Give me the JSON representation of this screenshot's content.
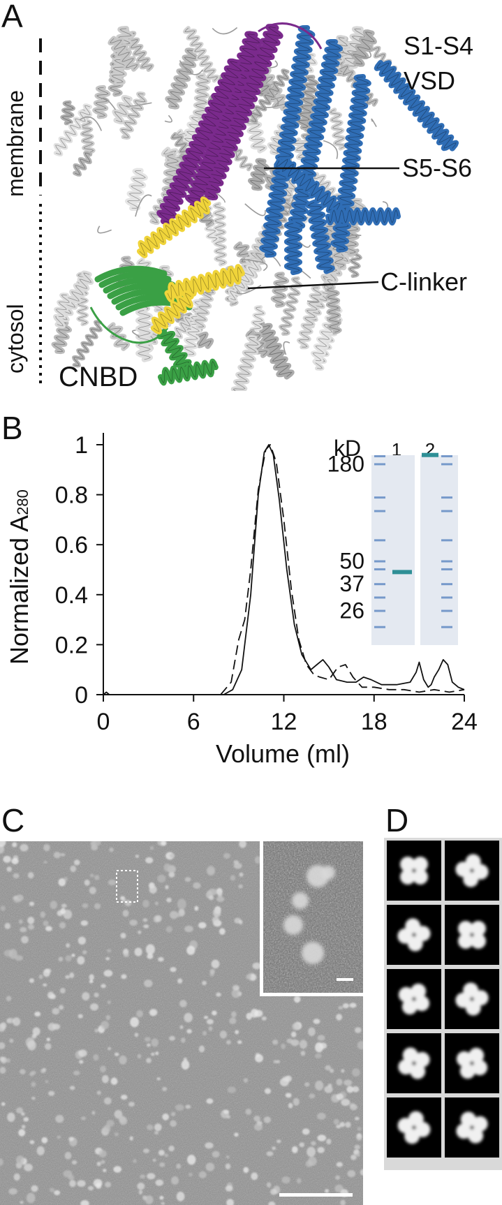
{
  "panels": {
    "a": "A",
    "b": "B",
    "c": "C",
    "d": "D"
  },
  "panel_a": {
    "side_labels": {
      "membrane": "membrane",
      "cytosol": "cytosol"
    },
    "annotations": {
      "vsd_line1": "S1-S4",
      "vsd_line2": "VSD",
      "s5s6": "S5-S6",
      "clinker": "C-linker",
      "cnbd": "CNBD"
    },
    "colors": {
      "grey": "#c8c8c8",
      "purple": "#7a2a8c",
      "blue": "#2f6db5",
      "yellow": "#f0d43a",
      "green": "#3aa045"
    }
  },
  "chart_data": {
    "type": "line",
    "ylabel_main": "Normalized A",
    "ylabel_sub": "280",
    "xlabel": "Volume (ml)",
    "xlim": [
      0,
      24
    ],
    "ylim": [
      0,
      1
    ],
    "xticks": [
      "0",
      "6",
      "12",
      "18",
      "24"
    ],
    "yticks": [
      "0",
      "0.2",
      "0.4",
      "0.6",
      "0.8",
      "1"
    ],
    "series": [
      {
        "style": "solid",
        "x": [
          0,
          0.2,
          0.4,
          6,
          8,
          8.6,
          9.2,
          9.8,
          10.3,
          10.7,
          11.0,
          11.3,
          11.7,
          12.2,
          12.7,
          13.2,
          13.8,
          14.2,
          14.6,
          15.0,
          15.5,
          16.2,
          16.8,
          17.3,
          17.8,
          18.5,
          19.5,
          20.4,
          20.8,
          21.0,
          21.3,
          21.6,
          21.8,
          22.0,
          22.3,
          22.6,
          22.9,
          23.2,
          23.6,
          24
        ],
        "y": [
          0,
          0.01,
          0,
          0,
          0,
          0.02,
          0.1,
          0.4,
          0.8,
          0.97,
          1.0,
          0.96,
          0.78,
          0.5,
          0.28,
          0.16,
          0.1,
          0.12,
          0.14,
          0.11,
          0.06,
          0.05,
          0.05,
          0.07,
          0.06,
          0.04,
          0.04,
          0.05,
          0.09,
          0.13,
          0.06,
          0.03,
          0.04,
          0.07,
          0.1,
          0.14,
          0.12,
          0.05,
          0.03,
          0.02
        ]
      },
      {
        "style": "dashed",
        "x": [
          0,
          6,
          7.8,
          8.5,
          9.0,
          9.4,
          9.8,
          10.3,
          10.8,
          11.1,
          11.5,
          12.0,
          12.5,
          13.0,
          13.5,
          14.0,
          14.4,
          15.0,
          15.6,
          16.1,
          16.6,
          17.2,
          18,
          19,
          20,
          21,
          22,
          23,
          24
        ],
        "y": [
          0,
          0,
          0,
          0.05,
          0.22,
          0.3,
          0.5,
          0.82,
          0.98,
          1.0,
          0.93,
          0.7,
          0.42,
          0.22,
          0.12,
          0.08,
          0.07,
          0.06,
          0.11,
          0.12,
          0.07,
          0.03,
          0.03,
          0.02,
          0.02,
          0.01,
          0.02,
          0.01,
          0.02
        ]
      }
    ],
    "inset": {
      "kd_label": "kD",
      "lanes": [
        "1",
        "2"
      ],
      "markers": [
        {
          "label": "180",
          "kd": 180
        },
        {
          "label": "50",
          "kd": 50
        },
        {
          "label": "37",
          "kd": 37
        },
        {
          "label": "26",
          "kd": 26
        }
      ]
    }
  },
  "panel_d": {
    "rows": 5,
    "cols": 2
  }
}
